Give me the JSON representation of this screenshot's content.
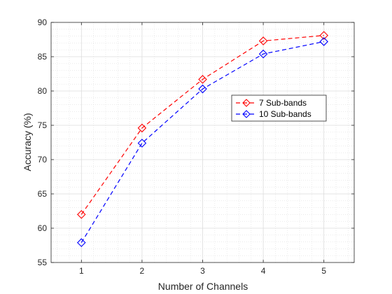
{
  "chart_data": {
    "type": "line",
    "xlabel": "Number of Channels",
    "ylabel": "Accuracy (%)",
    "x": [
      1,
      2,
      3,
      4,
      5
    ],
    "xlim": [
      0.5,
      5.5
    ],
    "ylim": [
      55,
      90
    ],
    "xticks": [
      1,
      2,
      3,
      4,
      5
    ],
    "yticks": [
      55,
      60,
      65,
      70,
      75,
      80,
      85,
      90
    ],
    "grid": true,
    "minor_grid": true,
    "legend_position": "center-right",
    "series": [
      {
        "name": "7 Sub-bands",
        "color": "#ff0000",
        "line_style": "dashed",
        "marker": "diamond",
        "values": [
          62.0,
          74.6,
          81.7,
          87.3,
          88.1
        ]
      },
      {
        "name": "10 Sub-bands",
        "color": "#0000ff",
        "line_style": "dashed",
        "marker": "diamond",
        "values": [
          57.9,
          72.4,
          80.3,
          85.4,
          87.2
        ]
      }
    ]
  }
}
